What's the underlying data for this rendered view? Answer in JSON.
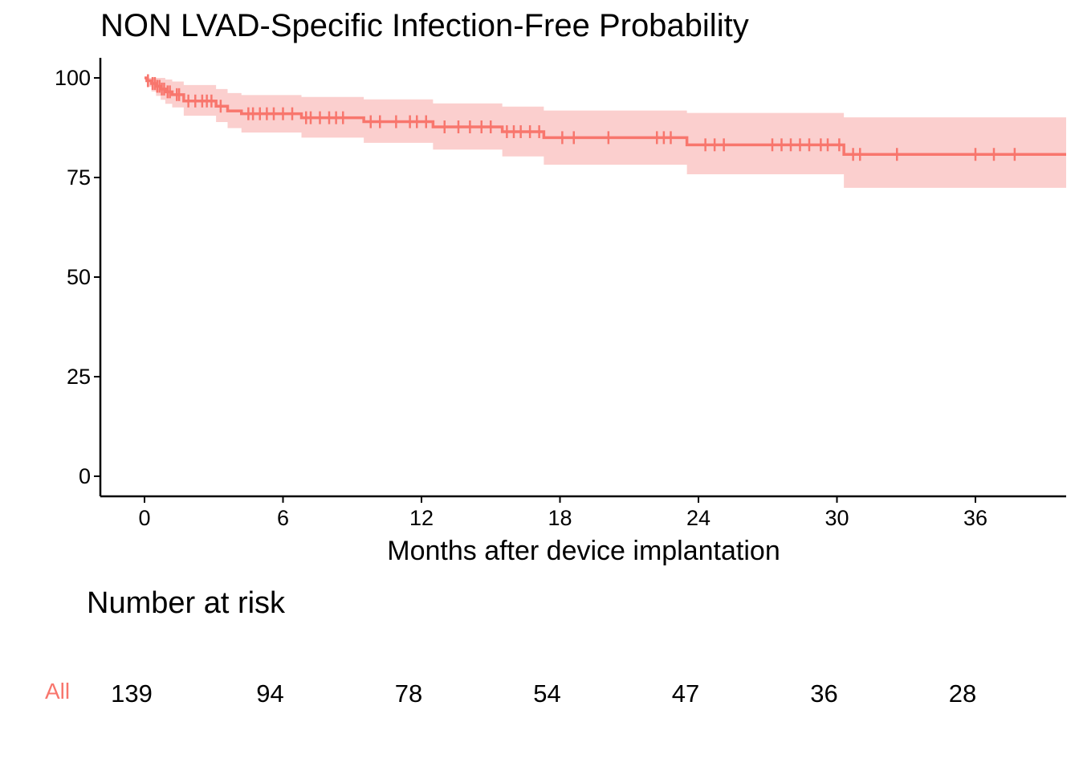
{
  "chart_data": {
    "type": "line",
    "title": "NON LVAD-Specific Infection-Free Probability",
    "xlabel": "Months after device implantation",
    "ylabel": "",
    "xlim": [
      -2,
      40
    ],
    "ylim": [
      -5,
      105
    ],
    "x_ticks": [
      0,
      6,
      12,
      18,
      24,
      30,
      36
    ],
    "y_ticks": [
      0,
      25,
      50,
      75,
      100
    ],
    "grid": false,
    "series": [
      {
        "name": "All",
        "color": "#F8766D",
        "band_color": "#FBCFCE",
        "steps": [
          {
            "x": 0,
            "y": 100,
            "lower": 100,
            "upper": 100
          },
          {
            "x": 0.1,
            "y": 99.3,
            "lower": 97.8,
            "upper": 100
          },
          {
            "x": 0.3,
            "y": 98.6,
            "lower": 96.6,
            "upper": 100
          },
          {
            "x": 0.5,
            "y": 97.9,
            "lower": 95.5,
            "upper": 100
          },
          {
            "x": 0.7,
            "y": 97.2,
            "lower": 94.5,
            "upper": 100
          },
          {
            "x": 0.9,
            "y": 96.5,
            "lower": 93.5,
            "upper": 99.6
          },
          {
            "x": 1.2,
            "y": 95.8,
            "lower": 92.6,
            "upper": 99.1
          },
          {
            "x": 1.7,
            "y": 94.2,
            "lower": 90.5,
            "upper": 98.2
          },
          {
            "x": 3.1,
            "y": 92.9,
            "lower": 88.9,
            "upper": 97.2
          },
          {
            "x": 3.6,
            "y": 91.7,
            "lower": 87.4,
            "upper": 96.2
          },
          {
            "x": 4.2,
            "y": 91.0,
            "lower": 86.3,
            "upper": 95.7
          },
          {
            "x": 6.8,
            "y": 90.0,
            "lower": 85.0,
            "upper": 95.2
          },
          {
            "x": 9.5,
            "y": 89.0,
            "lower": 83.7,
            "upper": 94.6
          },
          {
            "x": 12.5,
            "y": 87.7,
            "lower": 82.0,
            "upper": 93.6
          },
          {
            "x": 15.5,
            "y": 86.5,
            "lower": 80.3,
            "upper": 92.8
          },
          {
            "x": 17.3,
            "y": 85.0,
            "lower": 78.2,
            "upper": 91.8
          },
          {
            "x": 23.5,
            "y": 83.2,
            "lower": 75.8,
            "upper": 91.2
          },
          {
            "x": 30.3,
            "y": 80.8,
            "lower": 72.4,
            "upper": 90.1
          }
        ],
        "x_end": 40,
        "censored": [
          0.15,
          0.35,
          0.45,
          0.55,
          0.65,
          0.75,
          0.85,
          1.0,
          1.1,
          1.4,
          1.5,
          1.9,
          2.2,
          2.5,
          2.7,
          2.9,
          3.3,
          4.5,
          4.7,
          5.0,
          5.3,
          5.6,
          6.0,
          6.4,
          7.0,
          7.2,
          7.6,
          8.0,
          8.3,
          8.6,
          9.8,
          10.2,
          10.9,
          11.5,
          11.8,
          12.2,
          13.0,
          13.6,
          14.1,
          14.6,
          15.0,
          15.7,
          16.0,
          16.3,
          16.7,
          17.1,
          18.1,
          18.6,
          20.1,
          22.2,
          22.5,
          22.8,
          24.3,
          24.7,
          25.1,
          27.2,
          27.6,
          28.0,
          28.4,
          28.8,
          29.3,
          29.6,
          30.1,
          30.7,
          31.0,
          32.6,
          36.0,
          36.8,
          37.7
        ]
      }
    ]
  },
  "risk_table": {
    "title": "Number at risk",
    "group_label": "All",
    "group_color": "#F8766D",
    "times": [
      0,
      6,
      12,
      18,
      24,
      30,
      36
    ],
    "values": [
      "139",
      "94",
      "78",
      "54",
      "47",
      "36",
      "28"
    ]
  }
}
